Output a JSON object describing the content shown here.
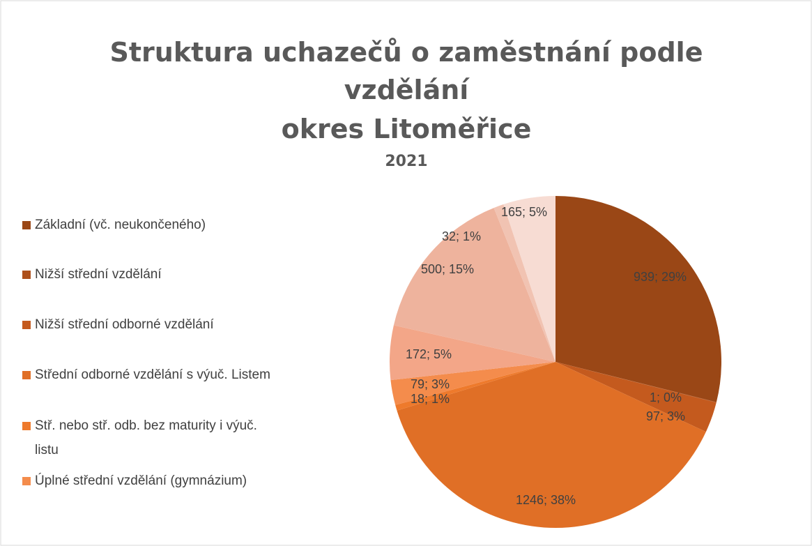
{
  "chart_data": {
    "type": "pie",
    "title": [
      "Struktura uchazečů o zaměstnání podle",
      "vzdělání",
      "okres Litoměřice"
    ],
    "subtitle": "2021",
    "categories": [
      "Základní (vč. neukončeného)",
      "Nižší střední vzdělání",
      "Nižší střední odborné vzdělání",
      "Střední odborné vzdělání s výuč. Listem",
      "Stř. nebo stř. odb. bez maturity i výuč. listu",
      "Úplné střední vzdělání (gymnázium)",
      null,
      null,
      null,
      null
    ],
    "values": [
      939,
      1,
      97,
      1246,
      18,
      79,
      172,
      500,
      32,
      165
    ],
    "value_labels": [
      "939; 29%",
      "1; 0%",
      "97; 3%",
      "1246; 38%",
      "18; 1%",
      "79; 3%",
      "172; 5%",
      "500; 15%",
      "32; 1%",
      "165; 5%"
    ],
    "colors": [
      "#9a4716",
      "#ad501b",
      "#c45a1e",
      "#e06f26",
      "#ee7a2c",
      "#f48c4c",
      "#f3a688",
      "#eeb39d",
      "#f1c3b2",
      "#f7dcd3"
    ],
    "legend": "left"
  }
}
